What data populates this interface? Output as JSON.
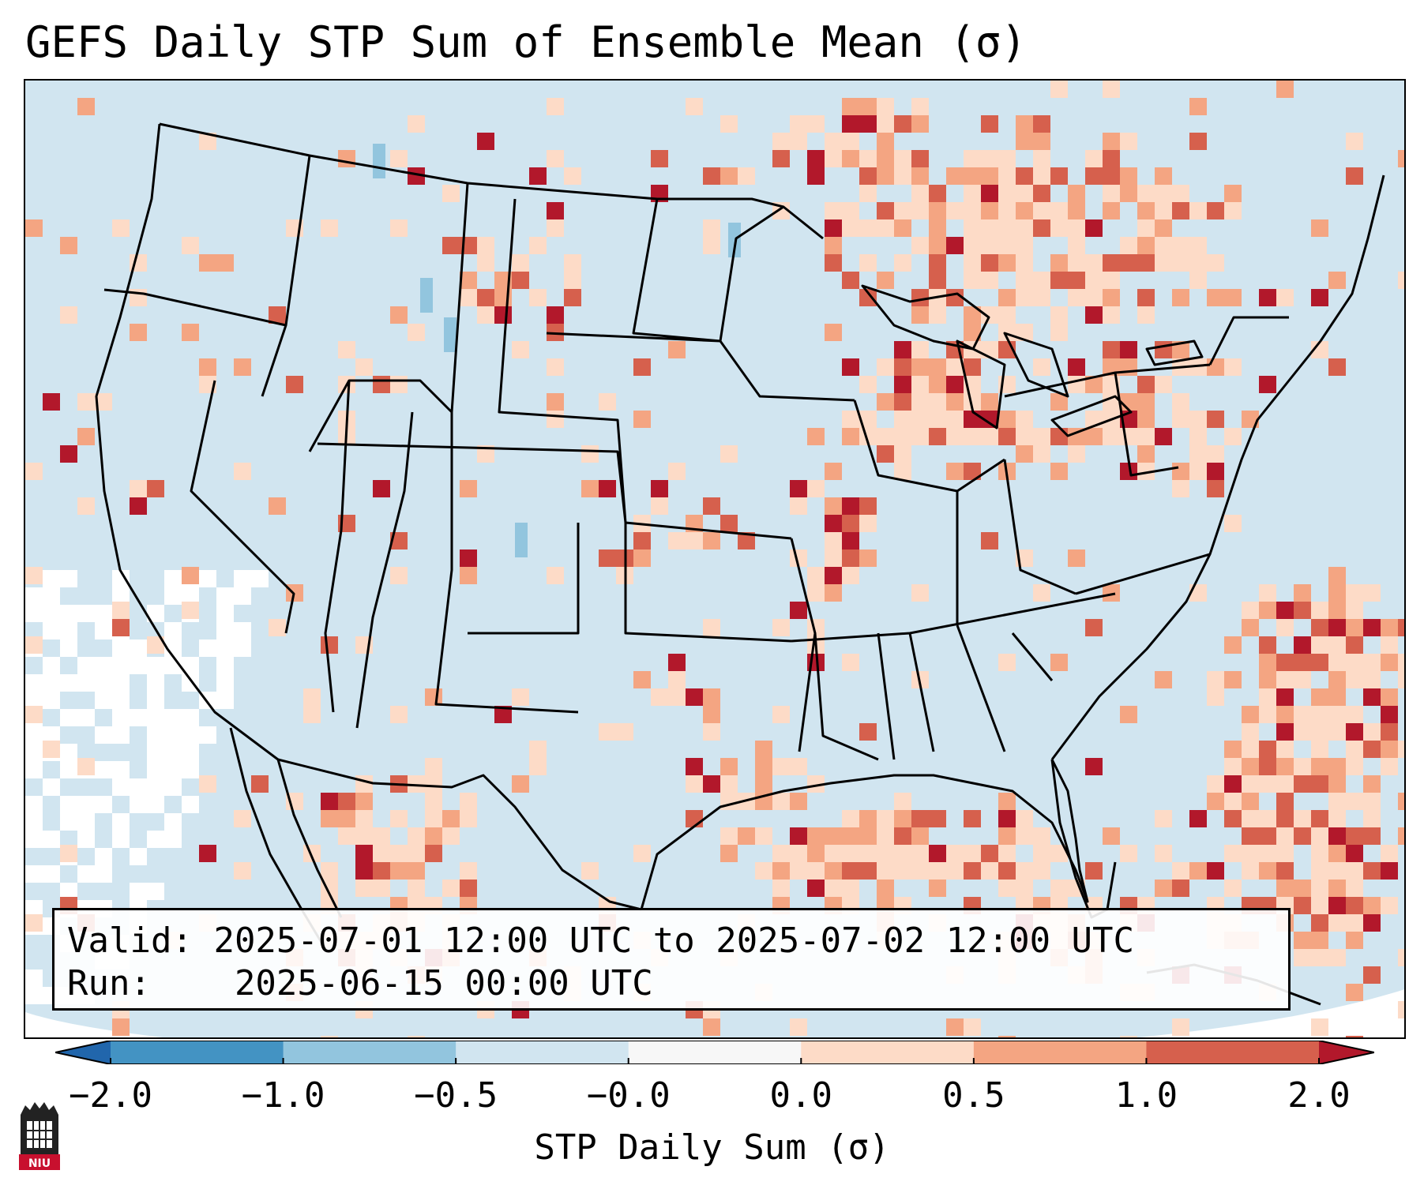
{
  "title": "GEFS Daily STP Sum of Ensemble Mean (σ)",
  "info": {
    "valid_label": "Valid:",
    "valid_value": "2025-07-01 12:00 UTC to 2025-07-02 12:00 UTC",
    "run_label": "Run:",
    "run_value": "2025-06-15 00:00 UTC"
  },
  "colorbar": {
    "label": "STP Daily Sum (σ)",
    "ticks": [
      "−2.0",
      "−1.0",
      "−0.5",
      "−0.0",
      "0.0",
      "0.5",
      "1.0",
      "2.0"
    ],
    "bin_colors": [
      "#4393c3",
      "#92c5de",
      "#d1e5f0",
      "#f7f7f7",
      "#fddbc7",
      "#f4a582",
      "#d6604d"
    ],
    "under_color": "#2166ac",
    "over_color": "#b2182b"
  },
  "map": {
    "ocean_color": "#ffffff",
    "land_neutral_color": "#d1e5f0",
    "outline_color": "#000000"
  },
  "logo": {
    "text": "NIU",
    "color": "#c8102e"
  }
}
